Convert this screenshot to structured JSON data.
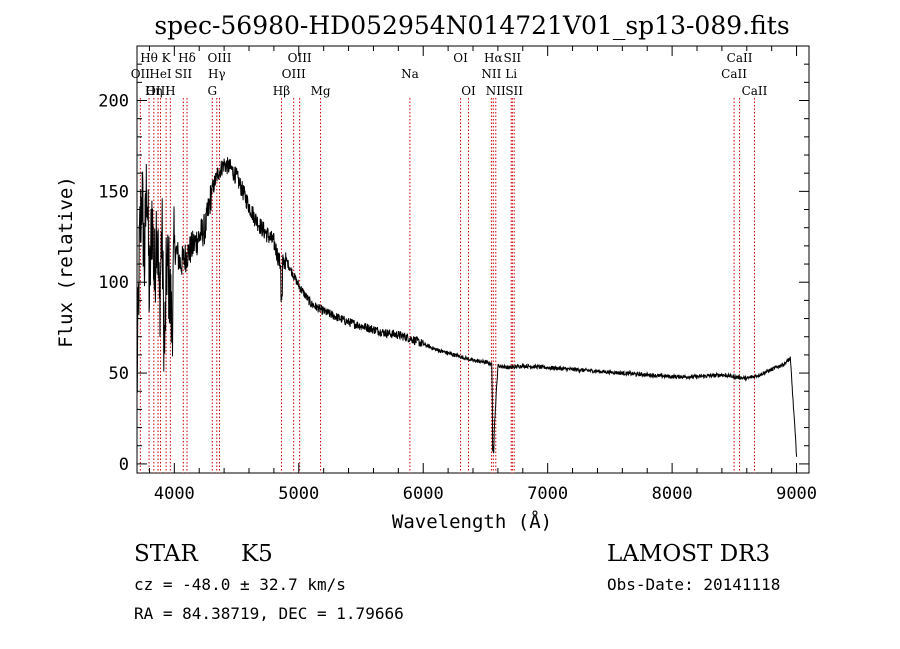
{
  "chart_data": {
    "type": "line",
    "title": "spec-56980-HD052954N014721V01_sp13-089.fits",
    "xlabel": "Wavelength (Å)",
    "ylabel": "Flux (relative)",
    "xlim": [
      3700,
      9100
    ],
    "ylim": [
      -5,
      230
    ],
    "x_ticks": [
      4000,
      5000,
      6000,
      7000,
      8000,
      9000
    ],
    "x_tick_labels": [
      "4000",
      "5000",
      "6000",
      "7000",
      "8000",
      "9000"
    ],
    "y_ticks": [
      0,
      50,
      100,
      150,
      200
    ],
    "y_tick_labels": [
      "0",
      "50",
      "100",
      "150",
      "200"
    ],
    "spectrum_anchor_points": {
      "wavelength": [
        3700,
        3720,
        3740,
        3760,
        3780,
        3800,
        3820,
        3840,
        3860,
        3880,
        3900,
        3920,
        3940,
        3960,
        3980,
        4000,
        4050,
        4100,
        4150,
        4200,
        4250,
        4300,
        4350,
        4400,
        4450,
        4500,
        4550,
        4600,
        4650,
        4700,
        4750,
        4800,
        4850,
        4900,
        4950,
        5000,
        5100,
        5200,
        5300,
        5400,
        5500,
        5600,
        5700,
        5800,
        5900,
        6000,
        6100,
        6200,
        6300,
        6400,
        6500,
        6550,
        6563,
        6600,
        6700,
        6800,
        7000,
        7200,
        7400,
        7600,
        7800,
        8000,
        8200,
        8400,
        8500,
        8600,
        8700,
        8800,
        8900,
        8950,
        9000
      ],
      "flux": [
        40,
        120,
        150,
        110,
        160,
        90,
        140,
        100,
        140,
        85,
        130,
        60,
        110,
        100,
        75,
        120,
        110,
        115,
        120,
        125,
        130,
        150,
        160,
        165,
        163,
        158,
        150,
        142,
        135,
        130,
        126,
        122,
        110,
        112,
        105,
        98,
        88,
        84,
        81,
        78,
        76,
        74,
        72,
        71,
        69,
        66,
        63,
        61,
        59,
        57,
        56,
        55,
        10,
        54,
        53,
        54,
        53,
        52,
        51,
        50,
        49,
        48,
        48,
        49,
        48,
        47,
        49,
        52,
        55,
        58,
        5
      ]
    },
    "line_annotations": [
      {
        "label": "OII",
        "wavelength": 3727,
        "row": 2
      },
      {
        "label": "Hθ",
        "wavelength": 3797,
        "row": 1
      },
      {
        "label": "OIII",
        "wavelength": 3869,
        "row": 3
      },
      {
        "label": "K",
        "wavelength": 3934,
        "row": 1
      },
      {
        "label": "HeI",
        "wavelength": 3889,
        "row": 2
      },
      {
        "label": "Hη",
        "wavelength": 3835,
        "row": 3
      },
      {
        "label": "H",
        "wavelength": 3968,
        "row": 3
      },
      {
        "label": "SII",
        "wavelength": 4072,
        "row": 2
      },
      {
        "label": "Hδ",
        "wavelength": 4102,
        "row": 1
      },
      {
        "label": "OIII",
        "wavelength": 4363,
        "row": 1
      },
      {
        "label": "Hγ",
        "wavelength": 4341,
        "row": 2
      },
      {
        "label": "G",
        "wavelength": 4305,
        "row": 3
      },
      {
        "label": "OIII",
        "wavelength": 5007,
        "row": 1
      },
      {
        "label": "OIII",
        "wavelength": 4959,
        "row": 2
      },
      {
        "label": "Hβ",
        "wavelength": 4861,
        "row": 3
      },
      {
        "label": "Mg",
        "wavelength": 5175,
        "row": 3
      },
      {
        "label": "Na",
        "wavelength": 5893,
        "row": 2
      },
      {
        "label": "OI",
        "wavelength": 6300,
        "row": 1
      },
      {
        "label": "OI",
        "wavelength": 6364,
        "row": 3
      },
      {
        "label": "Hα",
        "wavelength": 6563,
        "row": 1
      },
      {
        "label": "SII",
        "wavelength": 6716,
        "row": 1
      },
      {
        "label": "NII",
        "wavelength": 6548,
        "row": 2
      },
      {
        "label": "Li",
        "wavelength": 6707,
        "row": 2
      },
      {
        "label": "NII",
        "wavelength": 6583,
        "row": 3
      },
      {
        "label": "SII",
        "wavelength": 6731,
        "row": 3
      },
      {
        "label": "CaII",
        "wavelength": 8542,
        "row": 1
      },
      {
        "label": "CaII",
        "wavelength": 8498,
        "row": 2
      },
      {
        "label": "CaII",
        "wavelength": 8662,
        "row": 3
      }
    ]
  },
  "info": {
    "object_class": "STAR",
    "subclass": "K5",
    "survey": "LAMOST DR3",
    "redshift": "cz = -48.0 ± 32.7 km/s",
    "obs_date": "Obs-Date: 20141118",
    "coords": "RA =  84.38719, DEC =   1.79666"
  }
}
